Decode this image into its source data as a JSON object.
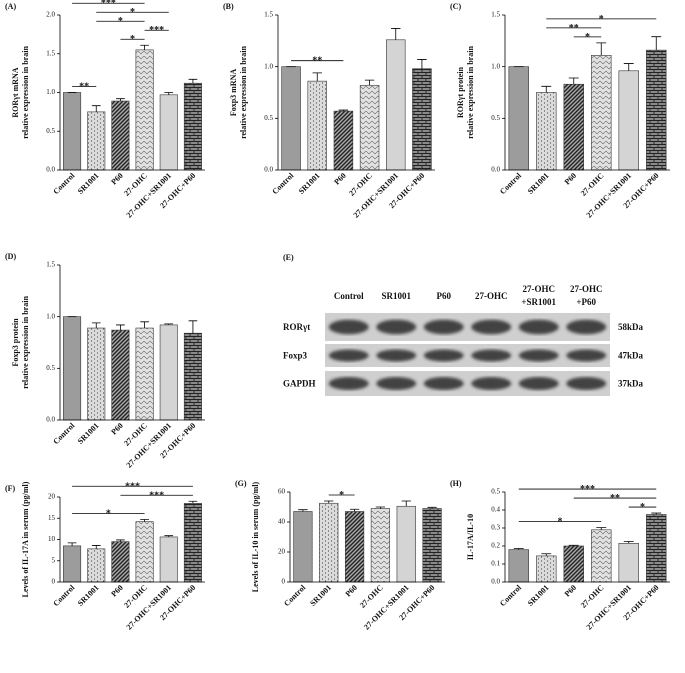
{
  "chart_data": [
    {
      "type": "bar",
      "label": "(A)",
      "y_label": [
        "RORγt  mRNA",
        "relative expression  in brain"
      ],
      "categories": [
        "Control",
        "SR1001",
        "P60",
        "27-OHC",
        "27-OHC+SR1001",
        "27-OHC+P60"
      ],
      "values": [
        1.0,
        0.75,
        0.89,
        1.55,
        0.97,
        1.12
      ],
      "errors": [
        0,
        0.08,
        0.03,
        0.06,
        0.03,
        0.05
      ],
      "colors": [
        "#9c9c9c",
        "#dcdcdc",
        "#a8a8a8",
        "#e2e2e2",
        "#d4d4d4",
        "#8a8a8a"
      ],
      "hatches": [
        "none",
        "dots",
        "stripes",
        "chevrons",
        "none",
        "bricks"
      ],
      "ylim": [
        0,
        2
      ],
      "yticks": [
        {
          "value": 0,
          "label": "0.0"
        },
        0.5,
        {
          "value": 1,
          "label": "1.0"
        },
        1.5,
        {
          "value": 2,
          "label": "2.0"
        }
      ],
      "significance": [
        {
          "from": 0,
          "to": 1,
          "label": "**"
        },
        {
          "from": 2,
          "to": 3,
          "label": "*"
        },
        {
          "from": 3,
          "to": 4,
          "label": "***"
        },
        {
          "from": 1,
          "to": 3,
          "label": "*"
        },
        {
          "from": 1,
          "to": 4,
          "label": "*"
        },
        {
          "from": 0,
          "to": 3,
          "label": "***"
        },
        {
          "from": 1,
          "to": 5,
          "label": "*"
        }
      ]
    },
    {
      "type": "bar",
      "label": "(B)",
      "y_label": [
        "Foxp3 mRNA",
        "relative expression in brain"
      ],
      "categories": [
        "Control",
        "SR1001",
        "P60",
        "27-OHC",
        "27-OHC+SR1001",
        "27-OHC+P60"
      ],
      "values": [
        1.0,
        0.86,
        0.57,
        0.82,
        1.26,
        0.98
      ],
      "errors": [
        0,
        0.08,
        0.01,
        0.05,
        0.11,
        0.09
      ],
      "colors": [
        "#9c9c9c",
        "#dcdcdc",
        "#a8a8a8",
        "#e2e2e2",
        "#d4d4d4",
        "#8a8a8a"
      ],
      "hatches": [
        "none",
        "dots",
        "stripes",
        "chevrons",
        "none",
        "bricks"
      ],
      "ylim": [
        0,
        1.5
      ],
      "yticks": [
        {
          "value": 0,
          "label": "0.0"
        },
        0.5,
        {
          "value": 1,
          "label": "1.0"
        },
        1.5
      ],
      "significance": [
        {
          "from": 0,
          "to": 2,
          "label": "**"
        }
      ]
    },
    {
      "type": "bar",
      "label": "(C)",
      "y_label": [
        "RORγt  protein",
        "relative expression in brain"
      ],
      "categories": [
        "Control",
        "SR1001",
        "P60",
        "27-OHC",
        "27-OHC+SR1001",
        "27-OHC+P60"
      ],
      "values": [
        1.0,
        0.75,
        0.83,
        1.11,
        0.96,
        1.16
      ],
      "errors": [
        0,
        0.06,
        0.06,
        0.12,
        0.07,
        0.13
      ],
      "colors": [
        "#9c9c9c",
        "#dcdcdc",
        "#a8a8a8",
        "#e2e2e2",
        "#d4d4d4",
        "#8a8a8a"
      ],
      "hatches": [
        "none",
        "dots",
        "stripes",
        "chevrons",
        "none",
        "bricks"
      ],
      "ylim": [
        0,
        1.5
      ],
      "yticks": [
        {
          "value": 0,
          "label": "0.0"
        },
        0.5,
        {
          "value": 1,
          "label": "1.0"
        },
        1.5
      ],
      "significance": [
        {
          "from": 2,
          "to": 3,
          "label": "*"
        },
        {
          "from": 1,
          "to": 3,
          "label": "**"
        },
        {
          "from": 1,
          "to": 5,
          "label": "*"
        }
      ]
    },
    {
      "type": "bar",
      "label": "(D)",
      "y_label": [
        "Foxp3 protein",
        "relative expression in brain"
      ],
      "categories": [
        "Control",
        "SR1001",
        "P60",
        "27-OHC",
        "27-OHC+SR1001",
        "27-OHC+P60"
      ],
      "values": [
        1.0,
        0.89,
        0.87,
        0.89,
        0.92,
        0.84
      ],
      "errors": [
        0,
        0.05,
        0.05,
        0.06,
        0.01,
        0.12
      ],
      "colors": [
        "#9c9c9c",
        "#dcdcdc",
        "#a8a8a8",
        "#e2e2e2",
        "#d4d4d4",
        "#8a8a8a"
      ],
      "hatches": [
        "none",
        "dots",
        "stripes",
        "chevrons",
        "none",
        "bricks"
      ],
      "ylim": [
        0,
        1.5
      ],
      "yticks": [
        {
          "value": 0,
          "label": "0.0"
        },
        0.5,
        {
          "value": 1,
          "label": "1.0"
        },
        1.5
      ],
      "significance": []
    },
    {
      "type": "bar",
      "label": "(F)",
      "y_label": [
        "Levels of IL-17A in serum (pg/ml)"
      ],
      "categories": [
        "Control",
        "SR1001",
        "P60",
        "27-OHC",
        "27-OHC+SR1001",
        "27-OHC+P60"
      ],
      "values": [
        8.5,
        7.8,
        9.5,
        14.2,
        10.6,
        18.5
      ],
      "errors": [
        0.7,
        0.8,
        0.4,
        0.5,
        0.3,
        0.5
      ],
      "colors": [
        "#9c9c9c",
        "#dcdcdc",
        "#a8a8a8",
        "#e2e2e2",
        "#d4d4d4",
        "#8a8a8a"
      ],
      "hatches": [
        "none",
        "dots",
        "stripes",
        "chevrons",
        "none",
        "bricks"
      ],
      "ylim": [
        0,
        20
      ],
      "yticks": [
        0,
        5,
        10,
        15,
        20
      ],
      "significance": [
        {
          "from": 0,
          "to": 3,
          "label": "*"
        },
        {
          "from": 2,
          "to": 5,
          "label": "***"
        },
        {
          "from": 0,
          "to": 5,
          "label": "***"
        }
      ]
    },
    {
      "type": "bar",
      "label": "(G)",
      "y_label": [
        "Levels of IL-10 in serum (pg/ml)"
      ],
      "categories": [
        "Control",
        "SR1001",
        "P60",
        "27-OHC",
        "27-OHC+SR1001",
        "27-OHC+P60"
      ],
      "values": [
        47,
        52.5,
        47,
        49,
        50.5,
        49
      ],
      "errors": [
        1.2,
        1.5,
        1.5,
        1,
        3.5,
        0.8
      ],
      "colors": [
        "#9c9c9c",
        "#dcdcdc",
        "#a8a8a8",
        "#e2e2e2",
        "#d4d4d4",
        "#8a8a8a"
      ],
      "hatches": [
        "none",
        "dots",
        "stripes",
        "chevrons",
        "none",
        "bricks"
      ],
      "ylim": [
        0,
        60
      ],
      "yticks": [
        0,
        20,
        40,
        60
      ],
      "significance": [
        {
          "from": 1,
          "to": 2,
          "label": "*"
        }
      ]
    },
    {
      "type": "bar",
      "label": "(H)",
      "y_label": [
        "IL-17A/IL-10"
      ],
      "categories": [
        "Control",
        "SR1001",
        "P60",
        "27-OHC",
        "27-OHC+SR1001",
        "27-OHC+P60"
      ],
      "values": [
        0.18,
        0.145,
        0.2,
        0.29,
        0.215,
        0.375
      ],
      "errors": [
        0.006,
        0.012,
        0.004,
        0.012,
        0.01,
        0.008
      ],
      "colors": [
        "#9c9c9c",
        "#dcdcdc",
        "#a8a8a8",
        "#e2e2e2",
        "#d4d4d4",
        "#8a8a8a"
      ],
      "hatches": [
        "none",
        "dots",
        "stripes",
        "chevrons",
        "none",
        "bricks"
      ],
      "ylim": [
        0,
        0.5
      ],
      "yticks": [
        {
          "value": 0,
          "label": "0.0"
        },
        0.1,
        0.2,
        0.3,
        0.4,
        0.5
      ],
      "significance": [
        {
          "from": 4,
          "to": 5,
          "label": "*"
        },
        {
          "from": 0,
          "to": 3,
          "label": "*"
        },
        {
          "from": 2,
          "to": 5,
          "label": "**"
        },
        {
          "from": 0,
          "to": 5,
          "label": "***"
        }
      ]
    }
  ],
  "blot": {
    "label": "(E)",
    "columns": [
      [
        "Control"
      ],
      [
        "SR1001"
      ],
      [
        "P60"
      ],
      [
        "27-OHC"
      ],
      [
        "27-OHC",
        "+SR1001"
      ],
      [
        "27-OHC",
        "+P60"
      ]
    ],
    "rows": [
      {
        "name": "RORγt",
        "size": "58kDa"
      },
      {
        "name": "Foxp3",
        "size": "47kDa"
      },
      {
        "name": "GAPDH",
        "size": "37kDa"
      }
    ]
  }
}
